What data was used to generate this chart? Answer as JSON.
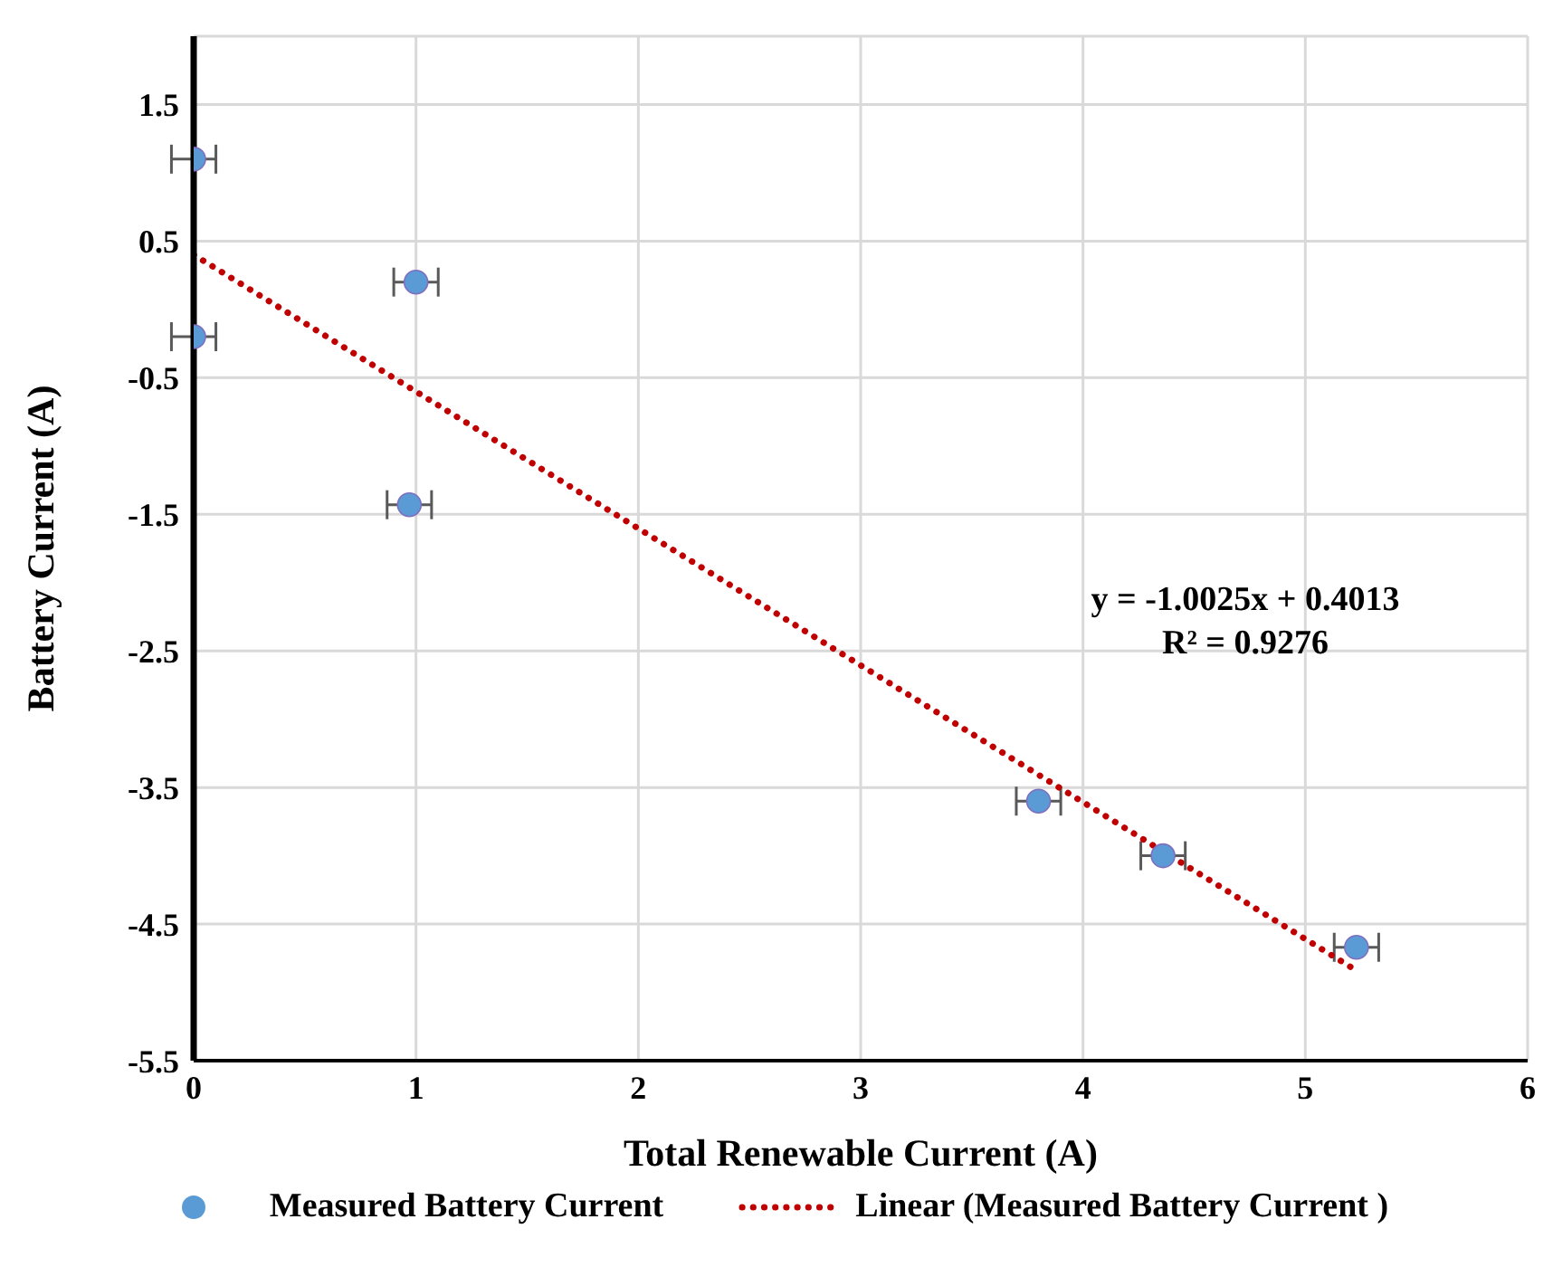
{
  "chart_data": {
    "type": "scatter",
    "xlabel": "Total Renewable Current (A)",
    "ylabel": "Battery Current (A)",
    "xlim": [
      0,
      6
    ],
    "xticks": [
      0,
      1,
      2,
      3,
      4,
      5,
      6
    ],
    "ylim": [
      -5.5,
      2
    ],
    "yticks": [
      -5.5,
      -4.5,
      -3.5,
      -2.5,
      -1.5,
      -0.5,
      0.5,
      1.5
    ],
    "grid": true,
    "legend": "bottom",
    "marker": "circle",
    "annotations": [
      "y = -1.0025x + 0.4013",
      "R² = 0.9276"
    ],
    "series": [
      {
        "name": "Measured Battery Current",
        "color": "#5b9bd5",
        "x": [
          0,
          1,
          0,
          0.97,
          3.8,
          4.36,
          5.23
        ],
        "values": [
          1.1,
          0.2,
          -0.2,
          -1.43,
          -3.6,
          -4.0,
          -4.67
        ],
        "xerrors": [
          0.1,
          0.1,
          0.1,
          0.1,
          0.1,
          0.1,
          0.1
        ]
      },
      {
        "name": "Linear (Measured Battery Current )",
        "type": "line",
        "color": "#c00000",
        "line_style": "dotted",
        "marker": "none",
        "x": [
          0,
          5.23
        ],
        "values": [
          0.4,
          -4.84
        ]
      }
    ]
  }
}
